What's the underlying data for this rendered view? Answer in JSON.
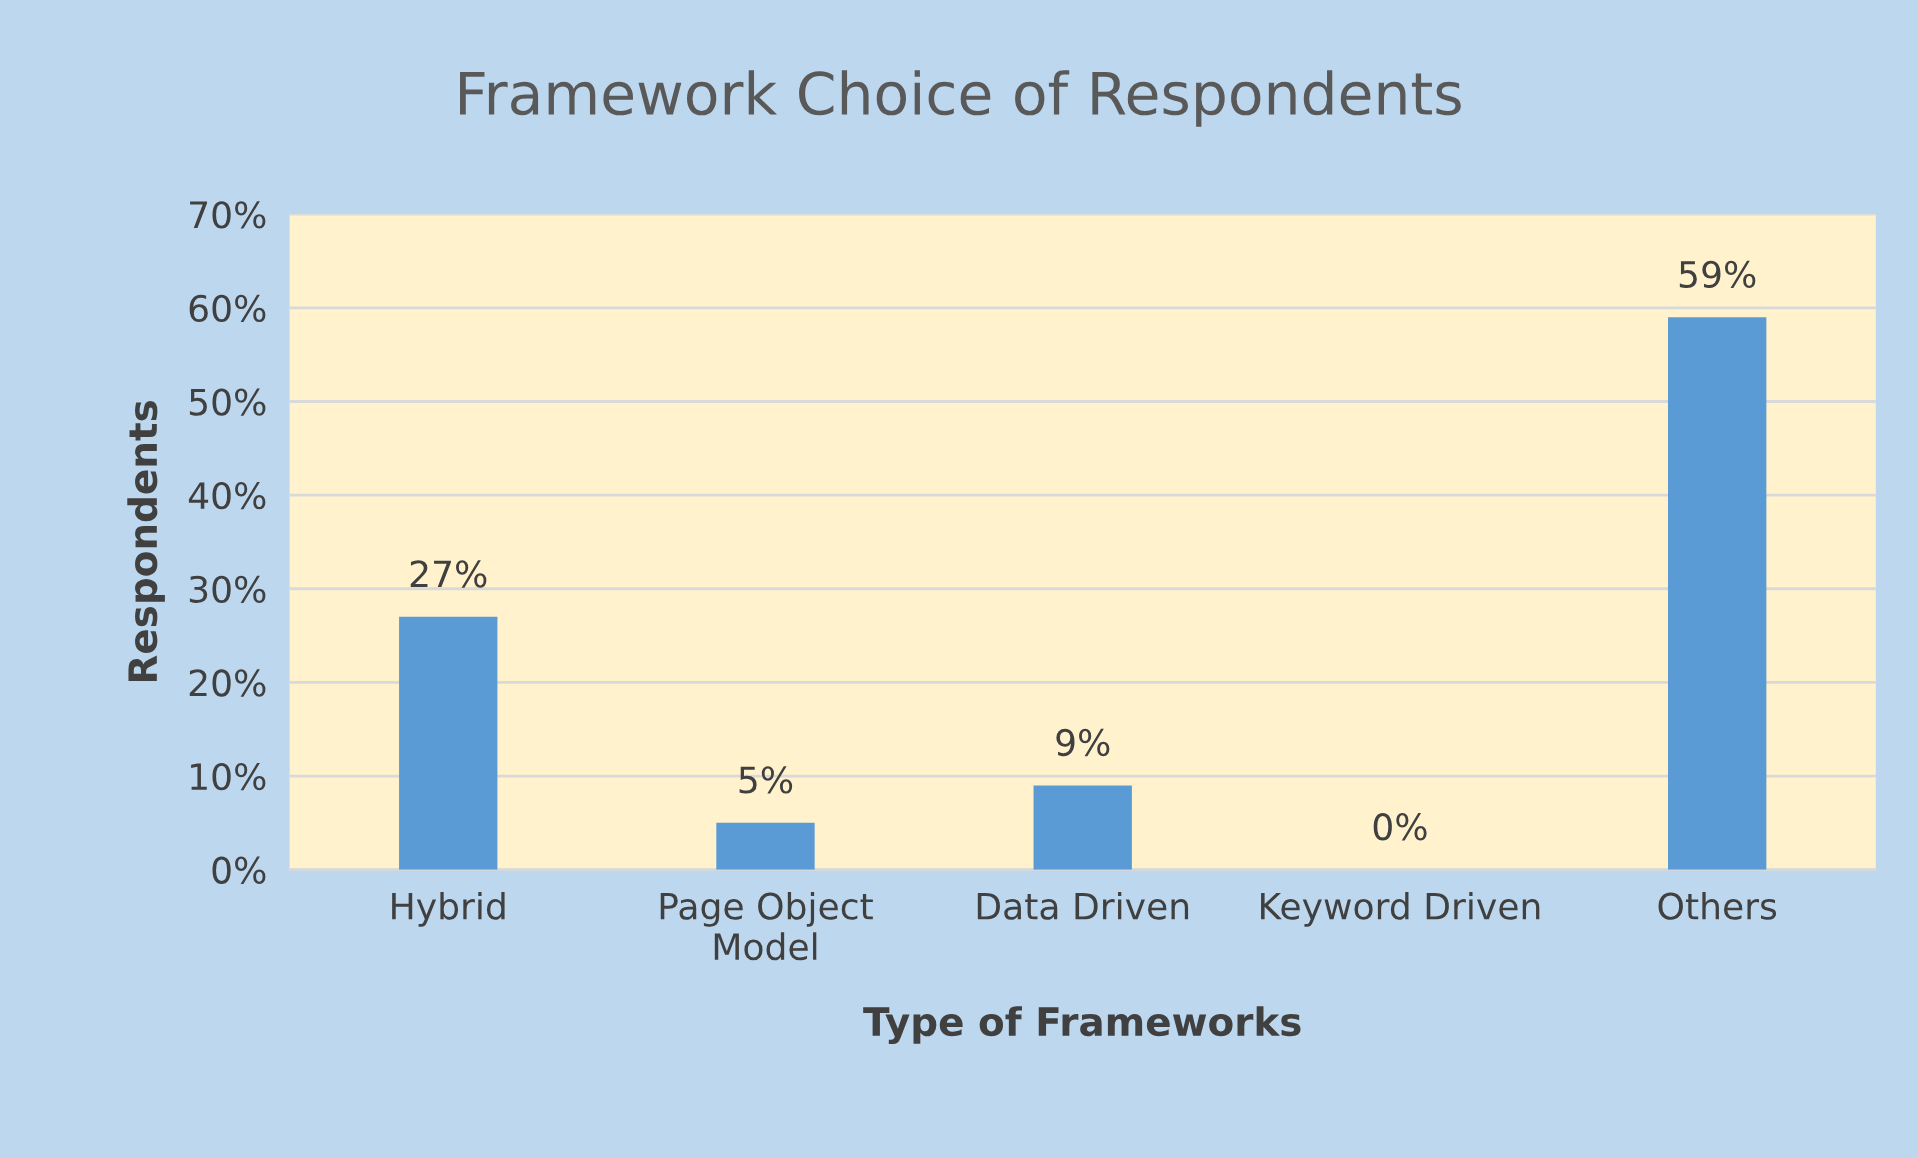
{
  "chart_data": {
    "type": "bar",
    "title": "Framework Choice of Respondents",
    "xlabel": "Type of Frameworks",
    "ylabel": "Respondents",
    "categories": [
      "Hybrid",
      "Page Object\nModel",
      "Data Driven",
      "Keyword Driven",
      "Others"
    ],
    "values": [
      27,
      5,
      9,
      0,
      59
    ],
    "value_labels": [
      "27%",
      "5%",
      "9%",
      "0%",
      "59%"
    ],
    "color": "#5b9bd5",
    "ylim": [
      0,
      70
    ],
    "yticks": [
      {
        "value": 0,
        "label": "0%"
      },
      {
        "value": 10,
        "label": "10%"
      },
      {
        "value": 20,
        "label": "20%"
      },
      {
        "value": 30,
        "label": "30%"
      },
      {
        "value": 40,
        "label": "40%"
      },
      {
        "value": 50,
        "label": "50%"
      },
      {
        "value": 60,
        "label": "60%"
      },
      {
        "value": 70,
        "label": "70%"
      }
    ],
    "grid": "y",
    "legend": false
  }
}
